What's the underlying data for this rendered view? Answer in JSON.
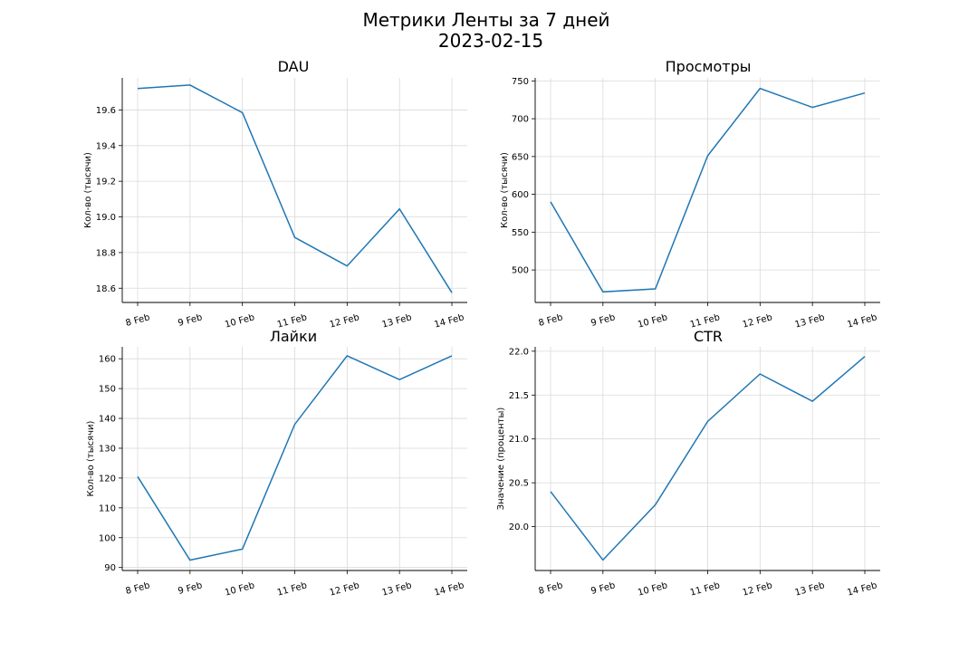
{
  "figure": {
    "title_line1": "Метрики Ленты за 7 дней",
    "title_line2": "2023-02-15"
  },
  "chart_data": [
    {
      "type": "line",
      "title": "DAU",
      "ylabel": "Кол-во (тысячи)",
      "xlabel": "",
      "categories": [
        "8 Feb",
        "9 Feb",
        "10 Feb",
        "11 Feb",
        "12 Feb",
        "13 Feb",
        "14 Feb"
      ],
      "values": [
        19.72,
        19.74,
        19.585,
        18.885,
        18.725,
        19.045,
        18.575
      ],
      "ylim": [
        18.52,
        19.78
      ],
      "yticks": [
        18.6,
        18.8,
        19.0,
        19.2,
        19.4,
        19.6
      ],
      "ytick_labels": [
        "18.6",
        "18.8",
        "19.0",
        "19.2",
        "19.4",
        "19.6"
      ],
      "grid": true,
      "color": "#1f77b4"
    },
    {
      "type": "line",
      "title": "Просмотры",
      "ylabel": "Кол-во (тысячи)",
      "xlabel": "",
      "categories": [
        "8 Feb",
        "9 Feb",
        "10 Feb",
        "11 Feb",
        "12 Feb",
        "13 Feb",
        "14 Feb"
      ],
      "values": [
        590,
        471,
        475,
        651,
        740,
        715,
        734
      ],
      "ylim": [
        457,
        754
      ],
      "yticks": [
        500,
        550,
        600,
        650,
        700,
        750
      ],
      "ytick_labels": [
        "500",
        "550",
        "600",
        "650",
        "700",
        "750"
      ],
      "grid": true,
      "color": "#1f77b4"
    },
    {
      "type": "line",
      "title": "Лайки",
      "ylabel": "Кол-во (тысячи)",
      "xlabel": "",
      "categories": [
        "8 Feb",
        "9 Feb",
        "10 Feb",
        "11 Feb",
        "12 Feb",
        "13 Feb",
        "14 Feb"
      ],
      "values": [
        120.5,
        92.5,
        96.2,
        138,
        161,
        153,
        161
      ],
      "ylim": [
        89,
        164
      ],
      "yticks": [
        90,
        100,
        110,
        120,
        130,
        140,
        150,
        160
      ],
      "ytick_labels": [
        "90",
        "100",
        "110",
        "120",
        "130",
        "140",
        "150",
        "160"
      ],
      "grid": true,
      "color": "#1f77b4"
    },
    {
      "type": "line",
      "title": "CTR",
      "ylabel": "Значение (проценты)",
      "xlabel": "",
      "categories": [
        "8 Feb",
        "9 Feb",
        "10 Feb",
        "11 Feb",
        "12 Feb",
        "13 Feb",
        "14 Feb"
      ],
      "values": [
        20.4,
        19.62,
        20.25,
        21.2,
        21.74,
        21.43,
        21.94
      ],
      "ylim": [
        19.5,
        22.05
      ],
      "yticks": [
        20.0,
        20.5,
        21.0,
        21.5,
        22.0
      ],
      "ytick_labels": [
        "20.0",
        "20.5",
        "21.0",
        "21.5",
        "22.0"
      ],
      "grid": true,
      "color": "#1f77b4"
    }
  ]
}
